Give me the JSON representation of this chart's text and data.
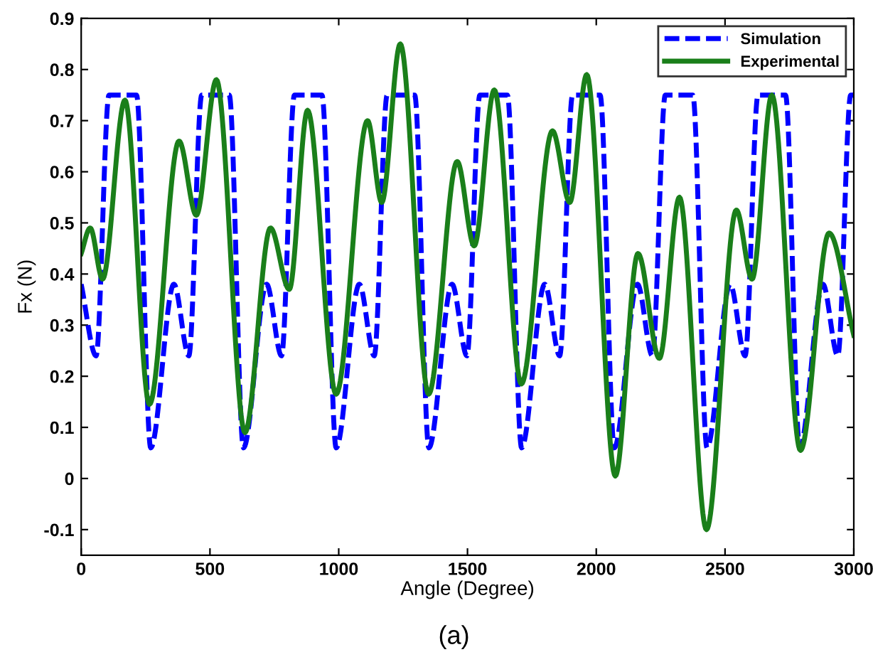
{
  "chart_data": {
    "type": "line",
    "xlabel": "Angle (Degree)",
    "ylabel": "Fx (N)",
    "annotations": [
      "(a)"
    ],
    "xlim": [
      0,
      3000
    ],
    "xticks": [
      0,
      500,
      1000,
      1500,
      2000,
      2500,
      3000
    ],
    "ylim": [
      -0.15,
      0.9
    ],
    "yticks": [
      -0.1,
      0,
      0.1,
      0.2,
      0.3,
      0.4,
      0.5,
      0.6,
      0.7,
      0.8,
      0.9
    ],
    "grid": false,
    "legend": "top right",
    "marker": "none",
    "series": [
      {
        "name": "Simulation",
        "color": "#0000ff",
        "line_style": "dashed",
        "x": [
          0,
          58,
          108,
          215,
          270,
          360,
          418,
          468,
          575,
          630,
          720,
          778,
          828,
          935,
          990,
          1080,
          1138,
          1188,
          1295,
          1350,
          1440,
          1498,
          1548,
          1655,
          1710,
          1800,
          1858,
          1908,
          2015,
          2070,
          2160,
          2218,
          2268,
          2375,
          2430,
          2520,
          2578,
          2628,
          2735,
          2790,
          2880,
          2938,
          2988,
          3000
        ],
        "values": [
          0.38,
          0.24,
          0.75,
          0.75,
          0.06,
          0.38,
          0.24,
          0.75,
          0.75,
          0.06,
          0.38,
          0.24,
          0.75,
          0.75,
          0.06,
          0.38,
          0.24,
          0.75,
          0.75,
          0.06,
          0.38,
          0.24,
          0.75,
          0.75,
          0.06,
          0.38,
          0.24,
          0.75,
          0.75,
          0.06,
          0.38,
          0.24,
          0.75,
          0.75,
          0.06,
          0.38,
          0.24,
          0.75,
          0.75,
          0.06,
          0.38,
          0.24,
          0.75,
          0.75
        ]
      },
      {
        "name": "Experimental",
        "color": "#1a7f1a",
        "line_style": "solid",
        "x": [
          0,
          35,
          83,
          170,
          265,
          380,
          447,
          525,
          636,
          735,
          808,
          879,
          990,
          1112,
          1167,
          1239,
          1349,
          1460,
          1526,
          1604,
          1709,
          1830,
          1897,
          1963,
          2074,
          2162,
          2245,
          2323,
          2428,
          2544,
          2605,
          2682,
          2793,
          2904,
          3000
        ],
        "values": [
          0.44,
          0.49,
          0.39,
          0.74,
          0.145,
          0.66,
          0.515,
          0.78,
          0.09,
          0.49,
          0.37,
          0.72,
          0.165,
          0.7,
          0.54,
          0.85,
          0.165,
          0.62,
          0.455,
          0.76,
          0.185,
          0.68,
          0.54,
          0.79,
          0.005,
          0.44,
          0.235,
          0.55,
          -0.1,
          0.525,
          0.39,
          0.75,
          0.055,
          0.48,
          0.28
        ]
      }
    ]
  }
}
